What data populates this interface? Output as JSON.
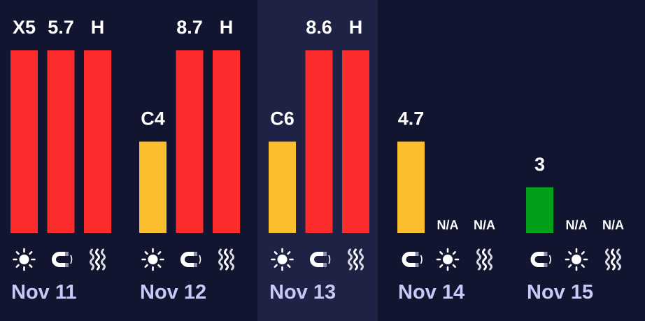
{
  "days": [
    {
      "date": "Nov 11",
      "selected": false,
      "items": [
        {
          "label": "X5",
          "color": "#fc2c2c",
          "icon": "sun"
        },
        {
          "label": "5.7",
          "color": "#fc2c2c",
          "icon": "magnet"
        },
        {
          "label": "H",
          "color": "#fc2c2c",
          "icon": "heat"
        }
      ]
    },
    {
      "date": "Nov 12",
      "selected": false,
      "items": [
        {
          "label": "C4",
          "color": "#fbbf2e",
          "icon": "sun"
        },
        {
          "label": "8.7",
          "color": "#fc2c2c",
          "icon": "magnet"
        },
        {
          "label": "H",
          "color": "#fc2c2c",
          "icon": "heat"
        }
      ]
    },
    {
      "date": "Nov 13",
      "selected": true,
      "items": [
        {
          "label": "C6",
          "color": "#fbbf2e",
          "icon": "sun"
        },
        {
          "label": "8.6",
          "color": "#fc2c2c",
          "icon": "magnet"
        },
        {
          "label": "H",
          "color": "#fc2c2c",
          "icon": "heat"
        }
      ]
    },
    {
      "date": "Nov 14",
      "selected": false,
      "items": [
        {
          "label": "4.7",
          "color": "#fbbf2e",
          "icon": "magnet"
        },
        {
          "label": "N/A",
          "color": null,
          "icon": "sun"
        },
        {
          "label": "N/A",
          "color": null,
          "icon": "heat"
        }
      ]
    },
    {
      "date": "Nov 15",
      "selected": false,
      "items": [
        {
          "label": "3",
          "color": "#00a01a",
          "icon": "magnet"
        },
        {
          "label": "N/A",
          "color": null,
          "icon": "sun"
        },
        {
          "label": "N/A",
          "color": null,
          "icon": "heat"
        }
      ]
    }
  ]
}
